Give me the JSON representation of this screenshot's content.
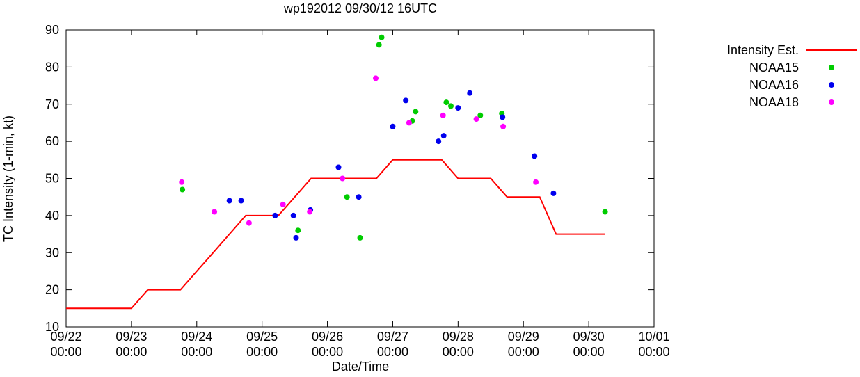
{
  "page": {
    "background": "#ffffff"
  },
  "chart_data": {
    "type": "line+scatter",
    "title": "wp192012 09/30/12 16UTC",
    "xlabel": "Date/Time",
    "ylabel": "TC Intensity (1-min, kt)",
    "grid": false,
    "legend_position": "outside-top-right",
    "x_axis": {
      "unit": "days since 09/22 00:00",
      "range_days": [
        0,
        9
      ],
      "ticks": [
        {
          "day": 0,
          "label": "09/22",
          "sublabel": "00:00"
        },
        {
          "day": 1,
          "label": "09/23",
          "sublabel": "00:00"
        },
        {
          "day": 2,
          "label": "09/24",
          "sublabel": "00:00"
        },
        {
          "day": 3,
          "label": "09/25",
          "sublabel": "00:00"
        },
        {
          "day": 4,
          "label": "09/26",
          "sublabel": "00:00"
        },
        {
          "day": 5,
          "label": "09/27",
          "sublabel": "00:00"
        },
        {
          "day": 6,
          "label": "09/28",
          "sublabel": "00:00"
        },
        {
          "day": 7,
          "label": "09/29",
          "sublabel": "00:00"
        },
        {
          "day": 8,
          "label": "09/30",
          "sublabel": "00:00"
        },
        {
          "day": 9,
          "label": "10/01",
          "sublabel": "00:00"
        }
      ]
    },
    "y_axis": {
      "range": [
        10,
        90
      ],
      "ticks": [
        10,
        20,
        30,
        40,
        50,
        60,
        70,
        80,
        90
      ]
    },
    "series": [
      {
        "name": "Intensity Est.",
        "type": "line",
        "color": "#ff0000",
        "points": [
          [
            0,
            15
          ],
          [
            1,
            15
          ],
          [
            1.25,
            20
          ],
          [
            1.75,
            20
          ],
          [
            2,
            25
          ],
          [
            2.25,
            30
          ],
          [
            2.5,
            35
          ],
          [
            2.75,
            40
          ],
          [
            3.25,
            40
          ],
          [
            3.5,
            45
          ],
          [
            3.75,
            50
          ],
          [
            4.75,
            50
          ],
          [
            5,
            55
          ],
          [
            5.75,
            55
          ],
          [
            6,
            50
          ],
          [
            6.5,
            50
          ],
          [
            6.75,
            45
          ],
          [
            7.25,
            45
          ],
          [
            7.5,
            35
          ],
          [
            8.25,
            35
          ]
        ]
      },
      {
        "name": "NOAA15",
        "type": "scatter",
        "color": "#00cc00",
        "points": [
          [
            1.78,
            47
          ],
          [
            3.55,
            36
          ],
          [
            4.3,
            45
          ],
          [
            4.5,
            34
          ],
          [
            4.79,
            86
          ],
          [
            4.83,
            88
          ],
          [
            5.3,
            65.5
          ],
          [
            5.35,
            68
          ],
          [
            5.82,
            70.5
          ],
          [
            5.89,
            69.5
          ],
          [
            6.34,
            67
          ],
          [
            6.67,
            67.5
          ],
          [
            8.25,
            41
          ]
        ]
      },
      {
        "name": "NOAA16",
        "type": "scatter",
        "color": "#0000ee",
        "points": [
          [
            2.5,
            44
          ],
          [
            2.68,
            44
          ],
          [
            3.2,
            40
          ],
          [
            3.48,
            40
          ],
          [
            3.52,
            34
          ],
          [
            3.74,
            41.5
          ],
          [
            4.17,
            53
          ],
          [
            4.48,
            45
          ],
          [
            5,
            64
          ],
          [
            5.2,
            71
          ],
          [
            5.7,
            60
          ],
          [
            5.78,
            61.5
          ],
          [
            6,
            69
          ],
          [
            6.18,
            73
          ],
          [
            6.68,
            66.5
          ],
          [
            7.17,
            56
          ],
          [
            7.46,
            46
          ]
        ]
      },
      {
        "name": "NOAA18",
        "type": "scatter",
        "color": "#ff00ff",
        "points": [
          [
            1.77,
            49
          ],
          [
            2.27,
            41
          ],
          [
            2.8,
            38
          ],
          [
            3.32,
            43
          ],
          [
            3.73,
            41
          ],
          [
            4.23,
            50
          ],
          [
            4.74,
            77
          ],
          [
            5.25,
            65
          ],
          [
            5.77,
            67
          ],
          [
            6.28,
            66
          ],
          [
            6.69,
            64
          ],
          [
            7.19,
            49
          ]
        ]
      }
    ]
  }
}
